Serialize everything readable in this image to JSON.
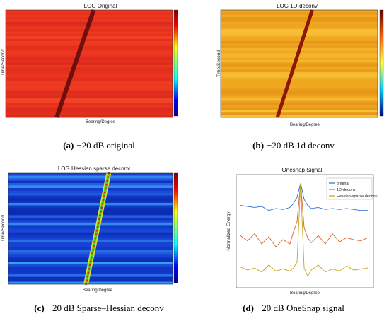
{
  "figure": {
    "panels": [
      {
        "id": "a",
        "caption_letter": "(a)",
        "caption_text": "−20 dB original",
        "plot_title": "LOG Original",
        "xlabel": "Bearing/Degree",
        "ylabel": "Time/Second"
      },
      {
        "id": "b",
        "caption_letter": "(b)",
        "caption_text": "−20 dB 1d deconv",
        "plot_title": "LOG 1D-deconv",
        "xlabel": "Bearing/Degree",
        "ylabel": "Time/Second"
      },
      {
        "id": "c",
        "caption_letter": "(c)",
        "caption_text": "−20 dB Sparse–Hessian deconv",
        "plot_title": "LOG Hessian sparse deconv",
        "xlabel": "Bearing/Degree",
        "ylabel": "Time/Second"
      },
      {
        "id": "d",
        "caption_letter": "(d)",
        "caption_text": "−20 dB OneSnap signal",
        "plot_title": "Onesnap Signal",
        "xlabel": "Bearing/Degree",
        "ylabel": "Normalized Energy"
      }
    ]
  },
  "chart_data": [
    {
      "type": "heatmap",
      "title": "LOG Original",
      "xlabel": "Bearing/Degree",
      "ylabel": "Time/Second",
      "colors": {
        "background": "#e6311f",
        "track": "#5a0a0a"
      },
      "track": {
        "bearing_start": 55,
        "bearing_end": 95
      }
    },
    {
      "type": "heatmap",
      "title": "LOG 1D-deconv",
      "xlabel": "Bearing/Degree",
      "ylabel": "Time/Second",
      "colors": {
        "background": "#f0a820",
        "track": "#7a0000"
      },
      "track": {
        "bearing_start": 65,
        "bearing_end": 105
      }
    },
    {
      "type": "heatmap",
      "title": "LOG Hessian sparse deconv",
      "xlabel": "Bearing/Degree",
      "ylabel": "Time/Second",
      "colors": {
        "background": "#1238c8",
        "track": "#3fd33a"
      },
      "track": {
        "bearing_start": 85,
        "bearing_end": 110
      }
    },
    {
      "type": "line",
      "title": "Onesnap Signal",
      "xlabel": "Bearing/Degree",
      "ylabel": "Normalized Energy",
      "legend_position": "top-right",
      "x": [
        0,
        10,
        20,
        30,
        40,
        50,
        60,
        70,
        75,
        80,
        85,
        90,
        95,
        100,
        110,
        120,
        130,
        140,
        150,
        160,
        170,
        180
      ],
      "series": [
        {
          "name": "original",
          "color": "#2f6fd4",
          "values": [
            0.78,
            0.77,
            0.76,
            0.77,
            0.73,
            0.75,
            0.74,
            0.76,
            0.8,
            0.86,
            1.0,
            0.84,
            0.78,
            0.75,
            0.76,
            0.74,
            0.75,
            0.74,
            0.75,
            0.74,
            0.73,
            0.73
          ]
        },
        {
          "name": "1D-deconv",
          "color": "#d4642a",
          "values": [
            0.48,
            0.43,
            0.5,
            0.4,
            0.47,
            0.37,
            0.44,
            0.4,
            0.52,
            0.62,
            1.0,
            0.56,
            0.46,
            0.41,
            0.48,
            0.4,
            0.5,
            0.42,
            0.46,
            0.44,
            0.43,
            0.46
          ]
        },
        {
          "name": "Hessian-sparse deconv",
          "color": "#c8a318",
          "values": [
            0.17,
            0.14,
            0.16,
            0.12,
            0.19,
            0.13,
            0.15,
            0.13,
            0.16,
            0.22,
            1.0,
            0.16,
            0.08,
            0.14,
            0.19,
            0.12,
            0.15,
            0.13,
            0.18,
            0.14,
            0.15,
            0.16
          ]
        }
      ]
    }
  ]
}
